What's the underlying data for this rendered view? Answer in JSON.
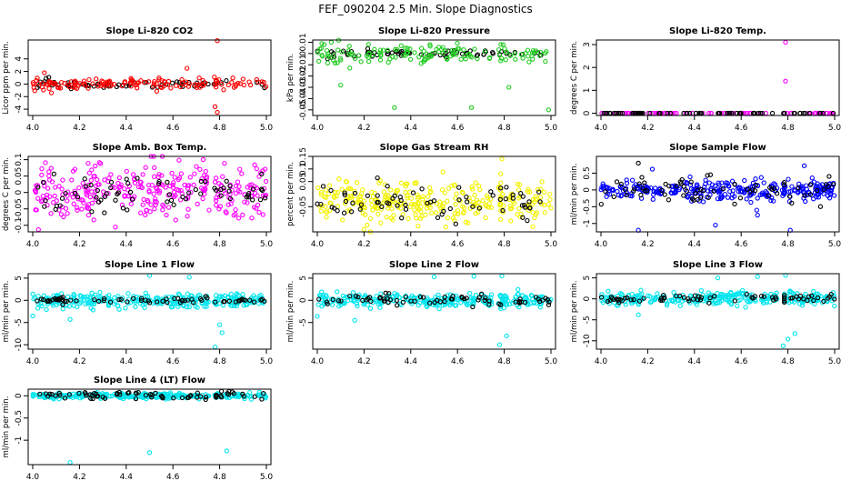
{
  "figure_title": "FEF_090204  2.5 Min. Slope Diagnostics",
  "colors": {
    "black": "#000000",
    "red": "#ff0000",
    "green": "#22cc22",
    "magenta": "#ff00ff",
    "yellow": "#f2f200",
    "blue": "#0000ff",
    "cyan": "#00e5ee"
  },
  "chart_data": [
    {
      "type": "scatter",
      "title": "Slope Li-820 CO2",
      "ylabel": "Licor ppm per min.",
      "xlim": [
        4.0,
        5.0
      ],
      "ylim": [
        -5,
        7
      ],
      "xticks": [
        "4.0",
        "4.2",
        "4.4",
        "4.6",
        "4.8",
        "5.0"
      ],
      "yticks": [
        -4,
        -2,
        0,
        2,
        4
      ],
      "series": [
        {
          "name": "black",
          "color": "#000000",
          "center": 0,
          "spread": 0.3,
          "count": 70,
          "seed": 11
        },
        {
          "name": "red",
          "color": "#ff0000",
          "center": 0,
          "spread": 0.5,
          "count": 140,
          "seed": 12,
          "outliers": [
            [
              4.79,
              6.9
            ],
            [
              4.79,
              -4.5
            ],
            [
              4.78,
              -3.6
            ],
            [
              4.66,
              2.5
            ],
            [
              4.05,
              1.8
            ],
            [
              4.08,
              -1.4
            ]
          ]
        }
      ]
    },
    {
      "type": "scatter",
      "title": "Slope Li-820 Pressure",
      "ylabel": "kPa per min.",
      "xlim": [
        4.0,
        5.0
      ],
      "ylim": [
        -0.055,
        0.012
      ],
      "xticks": [
        "4.0",
        "4.2",
        "4.4",
        "4.6",
        "4.8",
        "5.0"
      ],
      "yticks": [
        -0.05,
        -0.04,
        -0.03,
        -0.02,
        -0.01,
        0.0,
        0.01
      ],
      "series": [
        {
          "name": "black",
          "color": "#000000",
          "center": 0.0,
          "spread": 0.0015,
          "count": 70,
          "seed": 21
        },
        {
          "name": "green",
          "color": "#22cc22",
          "center": -0.001,
          "spread": 0.004,
          "count": 140,
          "seed": 22,
          "outliers": [
            [
              4.33,
              -0.048
            ],
            [
              4.66,
              -0.048
            ],
            [
              4.99,
              -0.05
            ],
            [
              4.82,
              -0.03
            ],
            [
              4.1,
              -0.028
            ],
            [
              4.03,
              0.008
            ],
            [
              4.06,
              0.01
            ]
          ]
        }
      ]
    },
    {
      "type": "scatter",
      "title": "Slope Li-820 Temp.",
      "ylabel": "degrees C per min.",
      "xlim": [
        4.0,
        5.0
      ],
      "ylim": [
        -0.1,
        3.2
      ],
      "xticks": [
        "4.0",
        "4.2",
        "4.4",
        "4.6",
        "4.8",
        "5.0"
      ],
      "yticks": [
        0.0,
        1.0,
        2.0,
        3.0
      ],
      "series": [
        {
          "name": "magenta",
          "color": "#ff00ff",
          "center": 0,
          "spread": 0.0,
          "count": 90,
          "seed": 31,
          "outliers": [
            [
              4.79,
              3.1
            ],
            [
              4.79,
              1.4
            ]
          ]
        },
        {
          "name": "black",
          "color": "#000000",
          "center": 0,
          "spread": 0.0,
          "count": 70,
          "seed": 32
        }
      ]
    },
    {
      "type": "scatter",
      "title": "Slope Amb. Box Temp.",
      "ylabel": "degrees C per min.",
      "xlim": [
        4.0,
        5.0
      ],
      "ylim": [
        -0.12,
        0.11
      ],
      "xticks": [
        "4.0",
        "4.2",
        "4.4",
        "4.6",
        "4.8",
        "5.0"
      ],
      "yticks": [
        -0.1,
        -0.05,
        0.0,
        0.05,
        0.1
      ],
      "series": [
        {
          "name": "magenta",
          "color": "#ff00ff",
          "center": 0.0,
          "spread": 0.045,
          "count": 300,
          "seed": 41
        },
        {
          "name": "black",
          "color": "#000000",
          "center": 0.0,
          "spread": 0.03,
          "count": 70,
          "seed": 42
        }
      ]
    },
    {
      "type": "scatter",
      "title": "Slope Gas Stream RH",
      "ylabel": "percent per min.",
      "xlim": [
        4.0,
        5.0
      ],
      "ylim": [
        -0.15,
        0.15
      ],
      "xticks": [
        "4.0",
        "4.2",
        "4.4",
        "4.6",
        "4.8",
        "5.0"
      ],
      "yticks": [
        -0.05,
        0.05,
        0.1,
        0.15
      ],
      "series": [
        {
          "name": "yellow",
          "color": "#f2f200",
          "center": -0.03,
          "spread": 0.04,
          "count": 300,
          "seed": 51,
          "outliers": [
            [
              4.79,
              0.14
            ],
            [
              4.2,
              -0.14
            ],
            [
              4.55,
              -0.13
            ]
          ]
        },
        {
          "name": "black",
          "color": "#000000",
          "center": -0.03,
          "spread": 0.035,
          "count": 70,
          "seed": 52
        }
      ]
    },
    {
      "type": "scatter",
      "title": "Slope Sample Flow",
      "ylabel": "ml/min per min.",
      "xlim": [
        4.0,
        5.0
      ],
      "ylim": [
        -1.25,
        1.0
      ],
      "xticks": [
        "4.0",
        "4.2",
        "4.4",
        "4.6",
        "4.8",
        "5.0"
      ],
      "yticks": [
        -1.0,
        -0.5,
        0.0,
        0.5
      ],
      "series": [
        {
          "name": "blue",
          "color": "#0000ff",
          "center": 0,
          "spread": 0.15,
          "count": 300,
          "seed": 61,
          "outliers": [
            [
              4.16,
              -1.2
            ],
            [
              4.49,
              -1.05
            ],
            [
              4.67,
              -0.75
            ],
            [
              4.81,
              -1.2
            ],
            [
              4.22,
              0.62
            ],
            [
              4.87,
              0.72
            ]
          ]
        },
        {
          "name": "black",
          "color": "#000000",
          "center": 0,
          "spread": 0.2,
          "count": 70,
          "seed": 62,
          "outliers": [
            [
              4.16,
              0.8
            ]
          ]
        }
      ]
    },
    {
      "type": "scatter",
      "title": "Slope Line 1 Flow",
      "ylabel": "ml/min per min.",
      "xlim": [
        4.0,
        5.0
      ],
      "ylim": [
        -11,
        6
      ],
      "xticks": [
        "4.0",
        "4.2",
        "4.4",
        "4.6",
        "4.8",
        "5.0"
      ],
      "yticks": [
        -10,
        -5,
        0,
        5
      ],
      "series": [
        {
          "name": "cyan",
          "color": "#00e5ee",
          "center": 0,
          "spread": 0.8,
          "count": 300,
          "seed": 71,
          "outliers": [
            [
              4.78,
              -10.5
            ],
            [
              4.81,
              -7.3
            ],
            [
              4.8,
              -5.5
            ],
            [
              4.16,
              -4.3
            ],
            [
              4.0,
              -3.5
            ],
            [
              4.5,
              5.6
            ],
            [
              4.67,
              5.2
            ]
          ]
        },
        {
          "name": "black",
          "color": "#000000",
          "center": 0,
          "spread": 0.3,
          "count": 70,
          "seed": 72
        }
      ]
    },
    {
      "type": "scatter",
      "title": "Slope Line 2 Flow",
      "ylabel": "ml/min per min.",
      "xlim": [
        4.0,
        5.0
      ],
      "ylim": [
        -11,
        6
      ],
      "xticks": [
        "4.0",
        "4.2",
        "4.4",
        "4.6",
        "4.8",
        "5.0"
      ],
      "yticks": [
        -5,
        0,
        5
      ],
      "series": [
        {
          "name": "cyan",
          "color": "#00e5ee",
          "center": 0,
          "spread": 0.8,
          "count": 300,
          "seed": 81,
          "outliers": [
            [
              4.78,
              -10
            ],
            [
              4.81,
              -8
            ],
            [
              4.79,
              5.5
            ],
            [
              4.67,
              5.4
            ],
            [
              4.5,
              5.3
            ],
            [
              4.16,
              -4.5
            ],
            [
              4.0,
              -3.6
            ]
          ]
        },
        {
          "name": "black",
          "color": "#000000",
          "center": 0,
          "spread": 0.6,
          "count": 70,
          "seed": 82
        }
      ]
    },
    {
      "type": "scatter",
      "title": "Slope Line 3 Flow",
      "ylabel": "ml/min per min.",
      "xlim": [
        4.0,
        5.0
      ],
      "ylim": [
        -12,
        6
      ],
      "xticks": [
        "4.0",
        "4.2",
        "4.4",
        "4.6",
        "4.8",
        "5.0"
      ],
      "yticks": [
        -10,
        -5,
        0,
        5
      ],
      "series": [
        {
          "name": "cyan",
          "color": "#00e5ee",
          "center": 0,
          "spread": 0.8,
          "count": 300,
          "seed": 91,
          "outliers": [
            [
              4.78,
              -11.2
            ],
            [
              4.8,
              -9.6
            ],
            [
              4.83,
              -8.3
            ],
            [
              4.79,
              5.6
            ],
            [
              4.67,
              5.3
            ],
            [
              4.5,
              5.0
            ],
            [
              4.16,
              -3.8
            ]
          ]
        },
        {
          "name": "black",
          "color": "#000000",
          "center": 0,
          "spread": 0.5,
          "count": 70,
          "seed": 92
        }
      ]
    },
    {
      "type": "scatter",
      "title": "Slope Line 4 (LT) Flow",
      "ylabel": "ml/min per min.",
      "xlim": [
        4.0,
        5.0
      ],
      "ylim": [
        -1.55,
        0.15
      ],
      "xticks": [
        "4.0",
        "4.2",
        "4.4",
        "4.6",
        "4.8",
        "5.0"
      ],
      "yticks": [
        -1.0,
        -0.5,
        0.0
      ],
      "series": [
        {
          "name": "cyan",
          "color": "#00e5ee",
          "center": 0,
          "spread": 0.03,
          "count": 300,
          "seed": 101,
          "outliers": [
            [
              4.16,
              -1.5
            ],
            [
              4.5,
              -1.28
            ],
            [
              4.83,
              -1.24
            ],
            [
              4.97,
              0.08
            ]
          ]
        },
        {
          "name": "black",
          "color": "#000000",
          "center": 0.01,
          "spread": 0.04,
          "count": 70,
          "seed": 102
        }
      ]
    }
  ]
}
